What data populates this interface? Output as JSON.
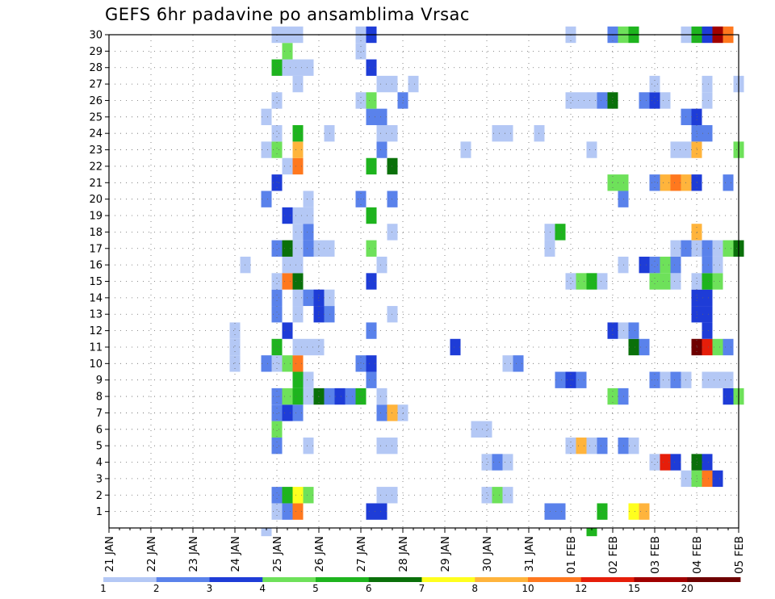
{
  "chart_data": {
    "type": "heatmap",
    "title": "GEFS 6hr padavine po ansamblima Vrsac",
    "xlabel": "",
    "ylabel": "",
    "x_ticks": [
      "21 JAN",
      "22 JAN",
      "23 JAN",
      "24 JAN",
      "25 JAN",
      "26 JAN",
      "27 JAN",
      "28 JAN",
      "29 JAN",
      "30 JAN",
      "31 JAN",
      "01 FEB",
      "02 FEB",
      "03 FEB",
      "04 FEB",
      "05 FEB"
    ],
    "x_range": [
      "21 JAN 00Z",
      "05 FEB 00Z"
    ],
    "x_step": "6hr",
    "y_ticks": [
      1,
      2,
      3,
      4,
      5,
      6,
      7,
      8,
      9,
      10,
      11,
      12,
      13,
      14,
      15,
      16,
      17,
      18,
      19,
      20,
      21,
      22,
      23,
      24,
      25,
      26,
      27,
      28,
      29,
      30
    ],
    "grid": true,
    "colorbar": {
      "labels": [
        "1",
        "2",
        "3",
        "4",
        "5",
        "6",
        "7",
        "8",
        "10",
        "12",
        "15",
        "20"
      ],
      "colors": [
        "#b4c8f5",
        "#5a82eb",
        "#1e3cd7",
        "#6ee15a",
        "#1eb41e",
        "#0a700a",
        "#ffff1e",
        "#ffb43c",
        "#ff781e",
        "#e61e0a",
        "#a00000",
        "#6e0000"
      ]
    },
    "cells": [
      [
        1,
        16,
        0
      ],
      [
        1,
        17,
        1
      ],
      [
        1,
        18,
        8
      ],
      [
        1,
        25,
        2
      ],
      [
        1,
        26,
        2
      ],
      [
        1,
        42,
        1
      ],
      [
        1,
        43,
        1
      ],
      [
        1,
        47,
        4
      ],
      [
        1,
        50,
        6
      ],
      [
        1,
        51,
        7
      ],
      [
        2,
        16,
        1
      ],
      [
        2,
        17,
        4
      ],
      [
        2,
        18,
        6
      ],
      [
        2,
        19,
        3
      ],
      [
        2,
        26,
        0
      ],
      [
        2,
        27,
        0
      ],
      [
        2,
        36,
        0
      ],
      [
        2,
        37,
        3
      ],
      [
        2,
        38,
        0
      ],
      [
        3,
        55,
        0
      ],
      [
        3,
        56,
        3
      ],
      [
        3,
        57,
        8
      ],
      [
        3,
        58,
        2
      ],
      [
        4,
        36,
        0
      ],
      [
        4,
        37,
        1
      ],
      [
        4,
        38,
        0
      ],
      [
        4,
        52,
        0
      ],
      [
        4,
        53,
        9
      ],
      [
        4,
        54,
        2
      ],
      [
        4,
        56,
        5
      ],
      [
        4,
        57,
        2
      ],
      [
        5,
        16,
        1
      ],
      [
        5,
        19,
        0
      ],
      [
        5,
        26,
        0
      ],
      [
        5,
        27,
        0
      ],
      [
        5,
        44,
        0
      ],
      [
        5,
        45,
        7
      ],
      [
        5,
        46,
        0
      ],
      [
        5,
        47,
        1
      ],
      [
        5,
        49,
        1
      ],
      [
        5,
        50,
        0
      ],
      [
        6,
        16,
        3
      ],
      [
        6,
        35,
        0
      ],
      [
        6,
        36,
        0
      ],
      [
        7,
        16,
        1
      ],
      [
        7,
        17,
        2
      ],
      [
        7,
        18,
        1
      ],
      [
        7,
        26,
        1
      ],
      [
        7,
        27,
        7
      ],
      [
        7,
        28,
        0
      ],
      [
        8,
        16,
        1
      ],
      [
        8,
        17,
        3
      ],
      [
        8,
        18,
        4
      ],
      [
        8,
        19,
        0
      ],
      [
        8,
        20,
        5
      ],
      [
        8,
        21,
        1
      ],
      [
        8,
        22,
        2
      ],
      [
        8,
        23,
        1
      ],
      [
        8,
        24,
        4
      ],
      [
        8,
        26,
        0
      ],
      [
        8,
        48,
        3
      ],
      [
        8,
        49,
        1
      ],
      [
        8,
        59,
        2
      ],
      [
        8,
        60,
        3
      ],
      [
        9,
        18,
        4
      ],
      [
        9,
        19,
        0
      ],
      [
        9,
        25,
        1
      ],
      [
        9,
        43,
        1
      ],
      [
        9,
        44,
        2
      ],
      [
        9,
        45,
        1
      ],
      [
        9,
        52,
        1
      ],
      [
        9,
        53,
        0
      ],
      [
        9,
        54,
        1
      ],
      [
        9,
        55,
        0
      ],
      [
        9,
        57,
        0
      ],
      [
        9,
        58,
        0
      ],
      [
        9,
        59,
        0
      ],
      [
        10,
        12,
        0
      ],
      [
        10,
        15,
        1
      ],
      [
        10,
        16,
        0
      ],
      [
        10,
        17,
        3
      ],
      [
        10,
        18,
        8
      ],
      [
        10,
        24,
        1
      ],
      [
        10,
        25,
        2
      ],
      [
        10,
        38,
        0
      ],
      [
        10,
        39,
        1
      ],
      [
        11,
        12,
        0
      ],
      [
        11,
        16,
        4
      ],
      [
        11,
        18,
        0
      ],
      [
        11,
        19,
        0
      ],
      [
        11,
        20,
        0
      ],
      [
        11,
        33,
        2
      ],
      [
        11,
        50,
        5
      ],
      [
        11,
        51,
        1
      ],
      [
        11,
        56,
        11
      ],
      [
        11,
        57,
        9
      ],
      [
        11,
        58,
        3
      ],
      [
        11,
        59,
        1
      ],
      [
        12,
        12,
        0
      ],
      [
        12,
        17,
        2
      ],
      [
        12,
        25,
        1
      ],
      [
        12,
        48,
        2
      ],
      [
        12,
        49,
        0
      ],
      [
        12,
        50,
        1
      ],
      [
        12,
        57,
        2
      ],
      [
        13,
        16,
        1
      ],
      [
        13,
        18,
        0
      ],
      [
        13,
        20,
        2
      ],
      [
        13,
        21,
        1
      ],
      [
        13,
        27,
        0
      ],
      [
        13,
        56,
        2
      ],
      [
        13,
        57,
        2
      ],
      [
        14,
        16,
        1
      ],
      [
        14,
        18,
        0
      ],
      [
        14,
        19,
        1
      ],
      [
        14,
        20,
        2
      ],
      [
        14,
        21,
        0
      ],
      [
        14,
        56,
        2
      ],
      [
        14,
        57,
        2
      ],
      [
        15,
        16,
        0
      ],
      [
        15,
        17,
        8
      ],
      [
        15,
        18,
        5
      ],
      [
        15,
        25,
        2
      ],
      [
        15,
        44,
        0
      ],
      [
        15,
        45,
        3
      ],
      [
        15,
        46,
        4
      ],
      [
        15,
        47,
        0
      ],
      [
        15,
        52,
        3
      ],
      [
        15,
        53,
        3
      ],
      [
        15,
        54,
        0
      ],
      [
        15,
        56,
        0
      ],
      [
        15,
        57,
        4
      ],
      [
        15,
        58,
        3
      ],
      [
        16,
        13,
        0
      ],
      [
        16,
        17,
        0
      ],
      [
        16,
        18,
        0
      ],
      [
        16,
        26,
        0
      ],
      [
        16,
        49,
        0
      ],
      [
        16,
        51,
        2
      ],
      [
        16,
        52,
        1
      ],
      [
        16,
        53,
        3
      ],
      [
        16,
        54,
        1
      ],
      [
        16,
        57,
        1
      ],
      [
        16,
        58,
        0
      ],
      [
        17,
        16,
        1
      ],
      [
        17,
        17,
        5
      ],
      [
        17,
        18,
        0
      ],
      [
        17,
        19,
        1
      ],
      [
        17,
        20,
        0
      ],
      [
        17,
        21,
        0
      ],
      [
        17,
        25,
        3
      ],
      [
        17,
        42,
        0
      ],
      [
        17,
        54,
        0
      ],
      [
        17,
        55,
        1
      ],
      [
        17,
        56,
        0
      ],
      [
        17,
        57,
        1
      ],
      [
        17,
        58,
        0
      ],
      [
        17,
        59,
        3
      ],
      [
        17,
        60,
        5
      ],
      [
        18,
        18,
        0
      ],
      [
        18,
        19,
        1
      ],
      [
        18,
        27,
        0
      ],
      [
        18,
        42,
        0
      ],
      [
        18,
        43,
        4
      ],
      [
        18,
        56,
        7
      ],
      [
        19,
        17,
        2
      ],
      [
        19,
        18,
        0
      ],
      [
        19,
        19,
        0
      ],
      [
        19,
        25,
        4
      ],
      [
        20,
        15,
        1
      ],
      [
        20,
        19,
        0
      ],
      [
        20,
        24,
        1
      ],
      [
        20,
        27,
        1
      ],
      [
        20,
        49,
        1
      ],
      [
        21,
        16,
        2
      ],
      [
        21,
        48,
        3
      ],
      [
        21,
        49,
        3
      ],
      [
        21,
        52,
        1
      ],
      [
        21,
        53,
        7
      ],
      [
        21,
        54,
        8
      ],
      [
        21,
        55,
        7
      ],
      [
        21,
        56,
        2
      ],
      [
        21,
        59,
        1
      ],
      [
        22,
        17,
        0
      ],
      [
        22,
        18,
        8
      ],
      [
        22,
        25,
        4
      ],
      [
        22,
        27,
        5
      ],
      [
        23,
        15,
        0
      ],
      [
        23,
        16,
        3
      ],
      [
        23,
        18,
        7
      ],
      [
        23,
        26,
        1
      ],
      [
        23,
        34,
        0
      ],
      [
        23,
        46,
        0
      ],
      [
        23,
        54,
        0
      ],
      [
        23,
        55,
        0
      ],
      [
        23,
        56,
        7
      ],
      [
        23,
        60,
        3
      ],
      [
        24,
        16,
        0
      ],
      [
        24,
        18,
        4
      ],
      [
        24,
        21,
        0
      ],
      [
        24,
        26,
        0
      ],
      [
        24,
        27,
        0
      ],
      [
        24,
        37,
        0
      ],
      [
        24,
        38,
        0
      ],
      [
        24,
        41,
        0
      ],
      [
        24,
        56,
        1
      ],
      [
        24,
        57,
        1
      ],
      [
        25,
        15,
        0
      ],
      [
        25,
        25,
        1
      ],
      [
        25,
        26,
        1
      ],
      [
        25,
        55,
        1
      ],
      [
        25,
        56,
        2
      ],
      [
        26,
        16,
        0
      ],
      [
        26,
        24,
        0
      ],
      [
        26,
        25,
        3
      ],
      [
        26,
        28,
        1
      ],
      [
        26,
        44,
        0
      ],
      [
        26,
        45,
        0
      ],
      [
        26,
        46,
        0
      ],
      [
        26,
        47,
        1
      ],
      [
        26,
        48,
        5
      ],
      [
        26,
        51,
        1
      ],
      [
        26,
        52,
        2
      ],
      [
        26,
        53,
        0
      ],
      [
        26,
        57,
        0
      ],
      [
        27,
        18,
        0
      ],
      [
        27,
        26,
        0
      ],
      [
        27,
        27,
        0
      ],
      [
        27,
        29,
        0
      ],
      [
        27,
        52,
        0
      ],
      [
        27,
        57,
        0
      ],
      [
        27,
        60,
        0
      ],
      [
        28,
        16,
        4
      ],
      [
        28,
        17,
        0
      ],
      [
        28,
        18,
        0
      ],
      [
        28,
        19,
        0
      ],
      [
        28,
        25,
        2
      ],
      [
        29,
        17,
        3
      ],
      [
        29,
        24,
        0
      ],
      [
        30,
        16,
        0
      ],
      [
        30,
        17,
        0
      ],
      [
        30,
        18,
        0
      ],
      [
        30,
        24,
        0
      ],
      [
        30,
        25,
        2
      ],
      [
        30,
        44,
        0
      ],
      [
        30,
        48,
        1
      ],
      [
        30,
        49,
        3
      ],
      [
        30,
        50,
        4
      ],
      [
        30,
        55,
        0
      ],
      [
        30,
        56,
        4
      ],
      [
        30,
        57,
        2
      ],
      [
        30,
        58,
        10
      ],
      [
        30,
        59,
        8
      ],
      [
        0,
        15,
        0
      ],
      [
        0,
        46,
        4
      ]
    ]
  }
}
